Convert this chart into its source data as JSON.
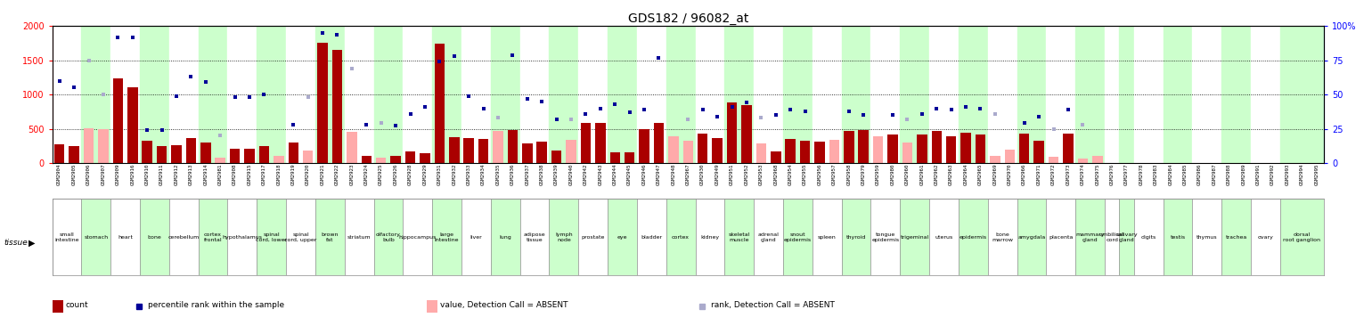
{
  "title": "GDS182 / 96082_at",
  "samples": [
    {
      "id": "GSM2904",
      "tissue": "small intestine",
      "count": 270,
      "rank": 60,
      "absent_val": null,
      "absent_rank": null
    },
    {
      "id": "GSM2905",
      "tissue": "small intestine",
      "count": 245,
      "rank": 55,
      "absent_val": null,
      "absent_rank": null
    },
    {
      "id": "GSM2906",
      "tissue": "stomach",
      "count": null,
      "rank": null,
      "absent_val": 510,
      "absent_rank": 75
    },
    {
      "id": "GSM2907",
      "tissue": "stomach",
      "count": null,
      "rank": null,
      "absent_val": 490,
      "absent_rank": 50
    },
    {
      "id": "GSM2909",
      "tissue": "heart",
      "count": 1230,
      "rank": 92,
      "absent_val": null,
      "absent_rank": null
    },
    {
      "id": "GSM2916",
      "tissue": "heart",
      "count": 1100,
      "rank": 92,
      "absent_val": null,
      "absent_rank": null
    },
    {
      "id": "GSM2910",
      "tissue": "bone",
      "count": 330,
      "rank": 24,
      "absent_val": null,
      "absent_rank": null
    },
    {
      "id": "GSM2911",
      "tissue": "bone",
      "count": 245,
      "rank": 24,
      "absent_val": null,
      "absent_rank": null
    },
    {
      "id": "GSM2912",
      "tissue": "cerebellum",
      "count": 260,
      "rank": 49,
      "absent_val": null,
      "absent_rank": null
    },
    {
      "id": "GSM2913",
      "tissue": "cerebellum",
      "count": 365,
      "rank": 63,
      "absent_val": null,
      "absent_rank": null
    },
    {
      "id": "GSM2914",
      "tissue": "cortex frontal",
      "count": 300,
      "rank": 59,
      "absent_val": null,
      "absent_rank": null
    },
    {
      "id": "GSM2981",
      "tissue": "cortex frontal",
      "count": null,
      "rank": null,
      "absent_val": 80,
      "absent_rank": 20
    },
    {
      "id": "GSM2908",
      "tissue": "hypothalamus",
      "count": 210,
      "rank": 48,
      "absent_val": null,
      "absent_rank": null
    },
    {
      "id": "GSM2915",
      "tissue": "hypothalamus",
      "count": 205,
      "rank": 48,
      "absent_val": null,
      "absent_rank": null
    },
    {
      "id": "GSM2917",
      "tissue": "spinal cord, lower",
      "count": 245,
      "rank": 50,
      "absent_val": null,
      "absent_rank": null
    },
    {
      "id": "GSM2918",
      "tissue": "spinal cord, lower",
      "count": null,
      "rank": null,
      "absent_val": 110,
      "absent_rank": null
    },
    {
      "id": "GSM2919",
      "tissue": "spinal cord, upper",
      "count": 295,
      "rank": 28,
      "absent_val": null,
      "absent_rank": null
    },
    {
      "id": "GSM2920",
      "tissue": "spinal cord, upper",
      "count": null,
      "rank": null,
      "absent_val": 185,
      "absent_rank": 48
    },
    {
      "id": "GSM2921",
      "tissue": "brown fat",
      "count": 1750,
      "rank": 95,
      "absent_val": null,
      "absent_rank": null
    },
    {
      "id": "GSM2922",
      "tissue": "brown fat",
      "count": 1650,
      "rank": 94,
      "absent_val": null,
      "absent_rank": null
    },
    {
      "id": "GSM2923",
      "tissue": "striatum",
      "count": null,
      "rank": null,
      "absent_val": 450,
      "absent_rank": 69
    },
    {
      "id": "GSM2924",
      "tissue": "striatum",
      "count": 100,
      "rank": 28,
      "absent_val": null,
      "absent_rank": null
    },
    {
      "id": "GSM2925",
      "tissue": "olfactory bulb",
      "count": null,
      "rank": null,
      "absent_val": 75,
      "absent_rank": 29
    },
    {
      "id": "GSM2926",
      "tissue": "olfactory bulb",
      "count": 110,
      "rank": 27,
      "absent_val": null,
      "absent_rank": null
    },
    {
      "id": "GSM2928",
      "tissue": "hippocampus",
      "count": 170,
      "rank": 36,
      "absent_val": null,
      "absent_rank": null
    },
    {
      "id": "GSM2929",
      "tissue": "hippocampus",
      "count": 145,
      "rank": 41,
      "absent_val": null,
      "absent_rank": null
    },
    {
      "id": "GSM2931",
      "tissue": "large intestine",
      "count": 1740,
      "rank": 74,
      "absent_val": null,
      "absent_rank": null
    },
    {
      "id": "GSM2932",
      "tissue": "large intestine",
      "count": 375,
      "rank": 78,
      "absent_val": null,
      "absent_rank": null
    },
    {
      "id": "GSM2933",
      "tissue": "liver",
      "count": 360,
      "rank": 49,
      "absent_val": null,
      "absent_rank": null
    },
    {
      "id": "GSM2934",
      "tissue": "liver",
      "count": 350,
      "rank": 40,
      "absent_val": null,
      "absent_rank": null
    },
    {
      "id": "GSM2935",
      "tissue": "lung",
      "count": null,
      "rank": null,
      "absent_val": 470,
      "absent_rank": 33
    },
    {
      "id": "GSM2936",
      "tissue": "lung",
      "count": 485,
      "rank": 79,
      "absent_val": null,
      "absent_rank": null
    },
    {
      "id": "GSM2937",
      "tissue": "adipose tissue",
      "count": 290,
      "rank": 47,
      "absent_val": null,
      "absent_rank": null
    },
    {
      "id": "GSM2938",
      "tissue": "adipose tissue",
      "count": 310,
      "rank": 45,
      "absent_val": null,
      "absent_rank": null
    },
    {
      "id": "GSM2939",
      "tissue": "lymph node",
      "count": 185,
      "rank": 32,
      "absent_val": null,
      "absent_rank": null
    },
    {
      "id": "GSM2940",
      "tissue": "lymph node",
      "count": null,
      "rank": null,
      "absent_val": 340,
      "absent_rank": 32
    },
    {
      "id": "GSM2942",
      "tissue": "prostate",
      "count": 590,
      "rank": 36,
      "absent_val": null,
      "absent_rank": null
    },
    {
      "id": "GSM2943",
      "tissue": "prostate",
      "count": 580,
      "rank": 40,
      "absent_val": null,
      "absent_rank": null
    },
    {
      "id": "GSM2944",
      "tissue": "eye",
      "count": 150,
      "rank": 43,
      "absent_val": null,
      "absent_rank": null
    },
    {
      "id": "GSM2945",
      "tissue": "eye",
      "count": 160,
      "rank": 37,
      "absent_val": null,
      "absent_rank": null
    },
    {
      "id": "GSM2946",
      "tissue": "bladder",
      "count": 490,
      "rank": 39,
      "absent_val": null,
      "absent_rank": null
    },
    {
      "id": "GSM2947",
      "tissue": "bladder",
      "count": 590,
      "rank": 77,
      "absent_val": null,
      "absent_rank": null
    },
    {
      "id": "GSM2948",
      "tissue": "cortex",
      "count": null,
      "rank": null,
      "absent_val": 390,
      "absent_rank": null
    },
    {
      "id": "GSM2967",
      "tissue": "cortex",
      "count": null,
      "rank": null,
      "absent_val": 330,
      "absent_rank": 32
    },
    {
      "id": "GSM2930",
      "tissue": "kidney",
      "count": 430,
      "rank": 39,
      "absent_val": null,
      "absent_rank": null
    },
    {
      "id": "GSM2949",
      "tissue": "kidney",
      "count": 370,
      "rank": 34,
      "absent_val": null,
      "absent_rank": null
    },
    {
      "id": "GSM2951",
      "tissue": "skeletal muscle",
      "count": 880,
      "rank": 41,
      "absent_val": null,
      "absent_rank": null
    },
    {
      "id": "GSM2952",
      "tissue": "skeletal muscle",
      "count": 840,
      "rank": 44,
      "absent_val": null,
      "absent_rank": null
    },
    {
      "id": "GSM2953",
      "tissue": "adrenal gland",
      "count": null,
      "rank": null,
      "absent_val": 290,
      "absent_rank": 33
    },
    {
      "id": "GSM2968",
      "tissue": "adrenal gland",
      "count": 175,
      "rank": 35,
      "absent_val": null,
      "absent_rank": null
    },
    {
      "id": "GSM2954",
      "tissue": "snout epidermis",
      "count": 345,
      "rank": 39,
      "absent_val": null,
      "absent_rank": null
    },
    {
      "id": "GSM2955",
      "tissue": "snout epidermis",
      "count": 330,
      "rank": 38,
      "absent_val": null,
      "absent_rank": null
    },
    {
      "id": "GSM2956",
      "tissue": "spleen",
      "count": 310,
      "rank": null,
      "absent_val": null,
      "absent_rank": null
    },
    {
      "id": "GSM2957",
      "tissue": "spleen",
      "count": null,
      "rank": null,
      "absent_val": 340,
      "absent_rank": null
    },
    {
      "id": "GSM2958",
      "tissue": "thyroid",
      "count": 470,
      "rank": 38,
      "absent_val": null,
      "absent_rank": null
    },
    {
      "id": "GSM2979",
      "tissue": "thyroid",
      "count": 480,
      "rank": 35,
      "absent_val": null,
      "absent_rank": null
    },
    {
      "id": "GSM2959",
      "tissue": "tongue epidermis",
      "count": null,
      "rank": null,
      "absent_val": 390,
      "absent_rank": null
    },
    {
      "id": "GSM2980",
      "tissue": "tongue epidermis",
      "count": 420,
      "rank": 35,
      "absent_val": null,
      "absent_rank": null
    },
    {
      "id": "GSM2960",
      "tissue": "trigeminal",
      "count": null,
      "rank": null,
      "absent_val": 300,
      "absent_rank": 32
    },
    {
      "id": "GSM2961",
      "tissue": "trigeminal",
      "count": 420,
      "rank": 36,
      "absent_val": null,
      "absent_rank": null
    },
    {
      "id": "GSM2962",
      "tissue": "uterus",
      "count": 470,
      "rank": 40,
      "absent_val": null,
      "absent_rank": null
    },
    {
      "id": "GSM2963",
      "tissue": "uterus",
      "count": 390,
      "rank": 39,
      "absent_val": null,
      "absent_rank": null
    },
    {
      "id": "GSM2964",
      "tissue": "epidermis",
      "count": 445,
      "rank": 41,
      "absent_val": null,
      "absent_rank": null
    },
    {
      "id": "GSM2965",
      "tissue": "epidermis",
      "count": 420,
      "rank": 40,
      "absent_val": null,
      "absent_rank": null
    },
    {
      "id": "GSM2969",
      "tissue": "bone marrow",
      "count": null,
      "rank": null,
      "absent_val": 110,
      "absent_rank": 36
    },
    {
      "id": "GSM2970",
      "tissue": "bone marrow",
      "count": null,
      "rank": null,
      "absent_val": 195,
      "absent_rank": null
    },
    {
      "id": "GSM2966",
      "tissue": "amygdala",
      "count": 430,
      "rank": 29,
      "absent_val": null,
      "absent_rank": null
    },
    {
      "id": "GSM2971",
      "tissue": "amygdala",
      "count": 320,
      "rank": 34,
      "absent_val": null,
      "absent_rank": null
    },
    {
      "id": "GSM2972",
      "tissue": "placenta",
      "count": null,
      "rank": null,
      "absent_val": 95,
      "absent_rank": 25
    },
    {
      "id": "GSM2973",
      "tissue": "placenta",
      "count": 430,
      "rank": 39,
      "absent_val": null,
      "absent_rank": null
    },
    {
      "id": "GSM2974",
      "tissue": "mammary gland",
      "count": null,
      "rank": null,
      "absent_val": 70,
      "absent_rank": 28
    },
    {
      "id": "GSM2975",
      "tissue": "mammary gland",
      "count": null,
      "rank": null,
      "absent_val": 100,
      "absent_rank": null
    },
    {
      "id": "GSM2976",
      "tissue": "umbilical cord",
      "count": null,
      "rank": null,
      "absent_val": null,
      "absent_rank": null
    },
    {
      "id": "GSM2977",
      "tissue": "salivary gland",
      "count": null,
      "rank": null,
      "absent_val": null,
      "absent_rank": null
    },
    {
      "id": "GSM2978",
      "tissue": "digits",
      "count": null,
      "rank": null,
      "absent_val": null,
      "absent_rank": null
    },
    {
      "id": "GSM2983",
      "tissue": "digits",
      "count": null,
      "rank": null,
      "absent_val": null,
      "absent_rank": null
    },
    {
      "id": "GSM2984",
      "tissue": "testis",
      "count": null,
      "rank": null,
      "absent_val": null,
      "absent_rank": null
    },
    {
      "id": "GSM2985",
      "tissue": "testis",
      "count": null,
      "rank": null,
      "absent_val": null,
      "absent_rank": null
    },
    {
      "id": "GSM2986",
      "tissue": "thymus",
      "count": null,
      "rank": null,
      "absent_val": null,
      "absent_rank": null
    },
    {
      "id": "GSM2987",
      "tissue": "thymus",
      "count": null,
      "rank": null,
      "absent_val": null,
      "absent_rank": null
    },
    {
      "id": "GSM2988",
      "tissue": "trachea",
      "count": null,
      "rank": null,
      "absent_val": null,
      "absent_rank": null
    },
    {
      "id": "GSM2989",
      "tissue": "trachea",
      "count": null,
      "rank": null,
      "absent_val": null,
      "absent_rank": null
    },
    {
      "id": "GSM2991",
      "tissue": "ovary",
      "count": null,
      "rank": null,
      "absent_val": null,
      "absent_rank": null
    },
    {
      "id": "GSM2992",
      "tissue": "ovary",
      "count": null,
      "rank": null,
      "absent_val": null,
      "absent_rank": null
    },
    {
      "id": "GSM2993",
      "tissue": "dorsal root ganglion",
      "count": null,
      "rank": null,
      "absent_val": null,
      "absent_rank": null
    },
    {
      "id": "GSM2994",
      "tissue": "dorsal root ganglion",
      "count": null,
      "rank": null,
      "absent_val": null,
      "absent_rank": null
    },
    {
      "id": "GSM2995",
      "tissue": "dorsal root ganglion",
      "count": null,
      "rank": null,
      "absent_val": null,
      "absent_rank": null
    }
  ],
  "ylim_left": [
    0,
    2000
  ],
  "ylim_right": [
    0,
    100
  ],
  "yticks_left": [
    0,
    500,
    1000,
    1500,
    2000
  ],
  "yticks_right": [
    0,
    25,
    50,
    75,
    100
  ],
  "bar_color_present": "#AA0000",
  "bar_color_absent": "#FFAAAA",
  "dot_color_present": "#000099",
  "dot_color_absent": "#AAAACC",
  "tissue_bg_odd": "#FFFFFF",
  "tissue_bg_even": "#CCFFCC",
  "title_fontsize": 10,
  "legend_items": [
    {
      "label": "count",
      "color": "#AA0000",
      "type": "bar"
    },
    {
      "label": "percentile rank within the sample",
      "color": "#000099",
      "type": "dot"
    },
    {
      "label": "value, Detection Call = ABSENT",
      "color": "#FFAAAA",
      "type": "bar"
    },
    {
      "label": "rank, Detection Call = ABSENT",
      "color": "#AAAACC",
      "type": "dot"
    }
  ]
}
